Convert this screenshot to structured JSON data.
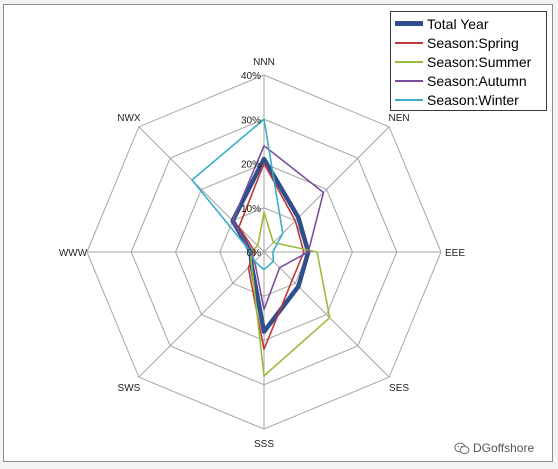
{
  "chart_data": {
    "type": "radar",
    "categories": [
      "NNN",
      "NEN",
      "EEE",
      "SES",
      "SSS",
      "SWS",
      "WWW",
      "NWX"
    ],
    "ticks": [
      "0%",
      "10%",
      "20%",
      "30%",
      "40%"
    ],
    "rlim": [
      0,
      40
    ],
    "grid": true,
    "legend_position": "top-right",
    "series": [
      {
        "name": "Total Year",
        "color": "#2e4e8c",
        "emphasis": true,
        "values": [
          21,
          11,
          10,
          11,
          18,
          4,
          3,
          10
        ]
      },
      {
        "name": "Season:Spring",
        "color": "#c0393b",
        "emphasis": false,
        "values": [
          20,
          10,
          9,
          9,
          22,
          5,
          2,
          8
        ]
      },
      {
        "name": "Season:Summer",
        "color": "#9bbb3c",
        "emphasis": false,
        "values": [
          9,
          3,
          12,
          21,
          28,
          4,
          3,
          2
        ]
      },
      {
        "name": "Season:Autumn",
        "color": "#7a4f9d",
        "emphasis": false,
        "values": [
          24,
          19,
          10,
          5,
          13,
          3,
          3,
          10
        ]
      },
      {
        "name": "Season:Winter",
        "color": "#3aaec4",
        "emphasis": false,
        "values": [
          30,
          6,
          2,
          3,
          4,
          3,
          3,
          23
        ]
      }
    ]
  },
  "watermark": {
    "text": "DGoffshore",
    "icon": "wechat-icon"
  }
}
